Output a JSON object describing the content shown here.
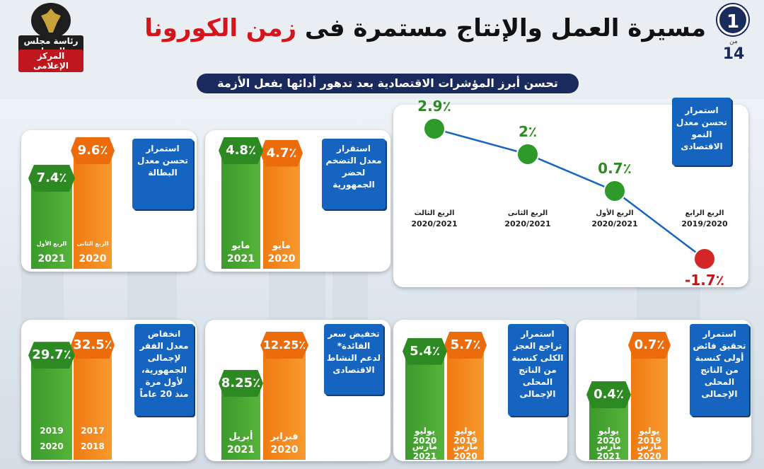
{
  "header": {
    "logo_line1": "رئاسة مجلس الوزراء",
    "logo_line2": "المركز الإعلامى",
    "title_main": "مسيرة العمل والإنتاج مستمرة فى",
    "title_highlight": "زمن الكورونا",
    "page_number": "1",
    "page_of": "من",
    "page_total": "14",
    "subtitle": "تحسن أبرز المؤشرات الاقتصادية بعد تدهور أدائها بفعل الأزمة"
  },
  "colors": {
    "green": "#3a9a2b",
    "orange": "#f07a12",
    "blue": "#1565c0",
    "navy": "#1b2a5c",
    "red": "#d5141c"
  },
  "chart_data": [
    {
      "type": "line",
      "label": "استمرار تحسن معدل النمو الاقتصادى",
      "x": [
        "الربع الرابع 2019/2020",
        "الربع الأول 2020/2021",
        "الربع الثانى 2020/2021",
        "الربع الثالث 2020/2021"
      ],
      "quarters": [
        {
          "name": "الربع الرابع",
          "year": "2019/2020",
          "value": -1.7,
          "text": "-1.7٪"
        },
        {
          "name": "الربع الأول",
          "year": "2020/2021",
          "value": 0.7,
          "text": "0.7٪"
        },
        {
          "name": "الربع الثانى",
          "year": "2020/2021",
          "value": 2.0,
          "text": "2٪"
        },
        {
          "name": "الربع الثالث",
          "year": "2020/2021",
          "value": 2.9,
          "text": "2.9٪"
        }
      ],
      "ylim": [
        -2.5,
        3.5
      ]
    },
    {
      "type": "bar",
      "label": "استقرار معدل التضخم لحضر الجمهورية",
      "bars": [
        {
          "value": 4.7,
          "text": "4.7٪",
          "period": "مايو",
          "year": "2020",
          "color": "orange"
        },
        {
          "value": 4.8,
          "text": "4.8٪",
          "period": "مايو",
          "year": "2021",
          "color": "green"
        }
      ]
    },
    {
      "type": "bar",
      "label": "استمرار تحسن معدل البطالة",
      "bars": [
        {
          "value": 9.6,
          "text": "9.6٪",
          "period": "الربع الثانى",
          "year": "2020",
          "color": "orange"
        },
        {
          "value": 7.4,
          "text": "7.4٪",
          "period": "الربع الأول",
          "year": "2021",
          "color": "green"
        }
      ]
    },
    {
      "type": "bar",
      "label": "استمرار تحقيق فائض أولى كنسبة من الناتج المحلى الإجمالى",
      "bars": [
        {
          "value": 0.7,
          "text": "0.7٪",
          "period_top": "يوليو 2019",
          "period_bottom": "مارس 2020",
          "color": "orange"
        },
        {
          "value": 0.4,
          "text": "0.4٪",
          "period_top": "يوليو 2020",
          "period_bottom": "مارس 2021",
          "color": "green"
        }
      ]
    },
    {
      "type": "bar",
      "label": "استمرار تراجع العجز الكلى كنسبة من الناتج المحلى الإجمالى",
      "bars": [
        {
          "value": 5.7,
          "text": "5.7٪",
          "period_top": "يوليو 2019",
          "period_bottom": "مارس 2020",
          "color": "orange"
        },
        {
          "value": 5.4,
          "text": "5.4٪",
          "period_top": "يوليو 2020",
          "period_bottom": "مارس 2021",
          "color": "green"
        }
      ]
    },
    {
      "type": "bar",
      "label": "تخفيض سعر الفائدة* لدعم النشاط الاقتصادى",
      "bars": [
        {
          "value": 12.25,
          "text": "12.25٪",
          "period": "فبراير",
          "year": "2020",
          "color": "orange"
        },
        {
          "value": 8.25,
          "text": "8.25٪",
          "period": "أبريل",
          "year": "2021",
          "color": "green"
        }
      ]
    },
    {
      "type": "bar",
      "label": "انخفاض معدل الفقر لإجمالى الجمهورية، لأول مرة منذ 20 عاماً",
      "bars": [
        {
          "value": 32.5,
          "text": "32.5٪",
          "period_top": "2017",
          "period_bottom": "2018",
          "color": "orange"
        },
        {
          "value": 29.7,
          "text": "29.7٪",
          "period_top": "2019",
          "period_bottom": "2020",
          "color": "green"
        }
      ]
    }
  ]
}
